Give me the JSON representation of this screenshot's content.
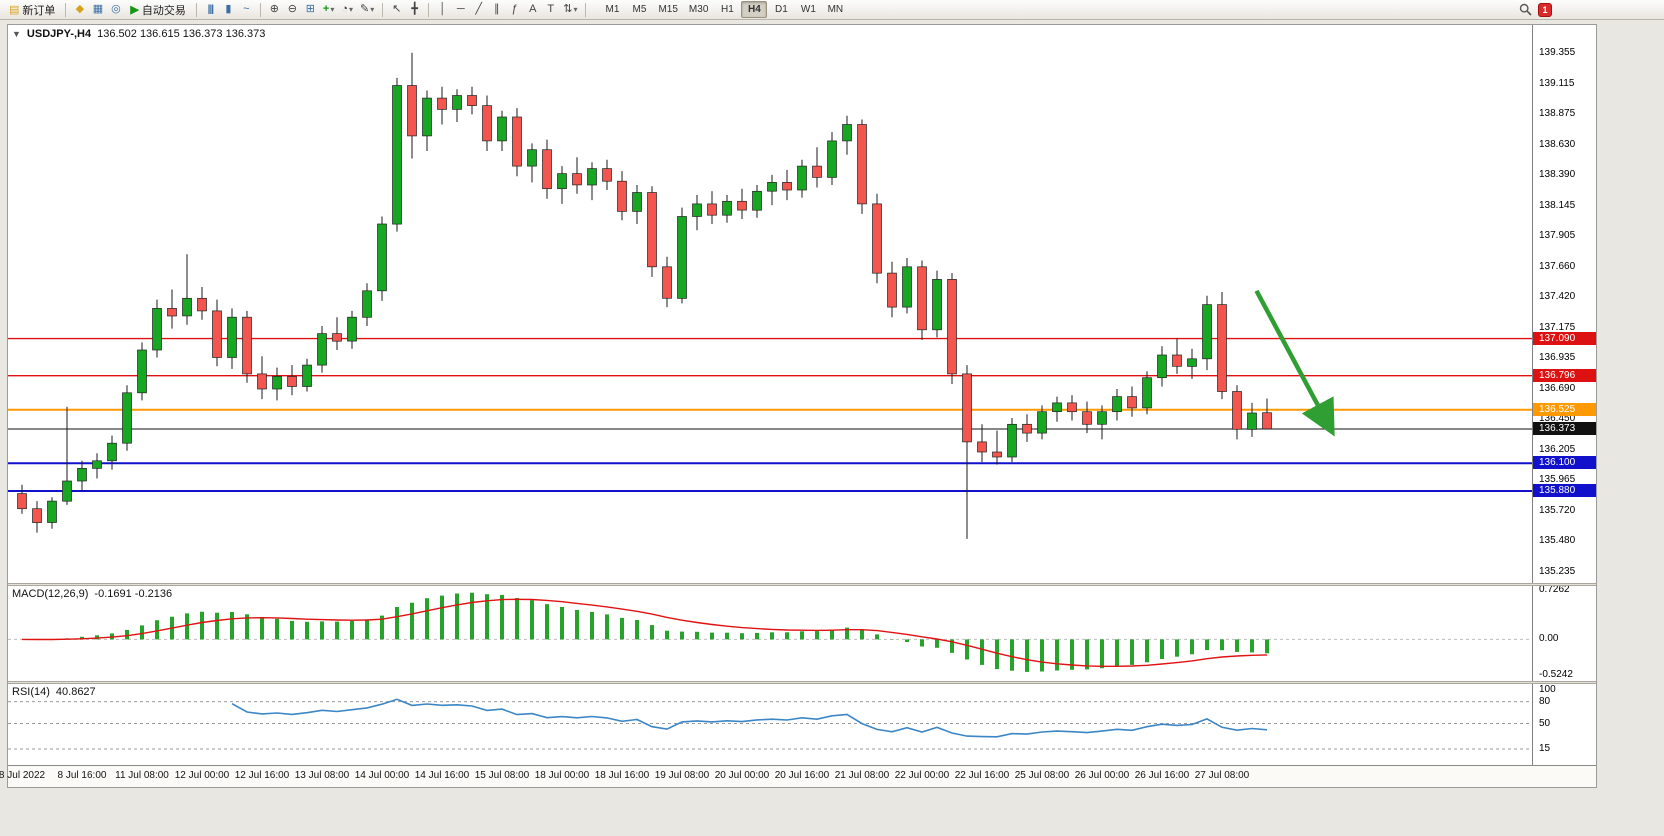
{
  "toolbar": {
    "new_order_label": "新订单",
    "auto_trading_label": "自动交易",
    "timeframes": [
      "M1",
      "M5",
      "M15",
      "M30",
      "H1",
      "H4",
      "D1",
      "W1",
      "MN"
    ],
    "active_timeframe": "H4",
    "notification_badge": "1",
    "glyphs": {
      "new_order": "▤",
      "megaphone": "◆",
      "chart_window": "▦",
      "profiles": "◎",
      "play": "▶",
      "bar_chart": "|||",
      "candlestick": "▮",
      "line_chart": "~",
      "zoom_in": "⊕",
      "zoom_out": "⊖",
      "tile_windows": "⊞",
      "indicators": "+",
      "periods": "◔",
      "templates": "✎",
      "cursor": "↖",
      "crosshair": "╋",
      "vertical_line": "│",
      "horizontal_line": "─",
      "trendline": "╱",
      "channel": "∥",
      "fibonacci": "ƒ",
      "text": "A",
      "label": "T",
      "arrows": "⇅",
      "dropdown": "▾",
      "one_click": "▼"
    }
  },
  "chart": {
    "symbol_period": "USDJPY-,H4",
    "ohlc_text": "136.502 136.615 136.373 136.373",
    "macd_header": "MACD(12,26,9)",
    "macd_values": "-0.1691 -0.2136",
    "rsi_header": "RSI(14)",
    "rsi_value": "40.8627"
  },
  "chart_data": {
    "type": "candlestick",
    "symbol": "USDJPY-",
    "timeframe": "H4",
    "ylim": [
      135.15,
      139.58
    ],
    "up_color": "#18a723",
    "down_color": "#f2564e",
    "wick_color": "#1b1b1b",
    "price_axis_ticks": [
      "139.355",
      "139.115",
      "138.875",
      "138.630",
      "138.390",
      "138.145",
      "137.905",
      "137.660",
      "137.420",
      "137.175",
      "136.935",
      "136.690",
      "136.450",
      "136.205",
      "135.965",
      "135.720",
      "135.480",
      "135.235"
    ],
    "time_labels": [
      "8 Jul 2022",
      "8 Jul 16:00",
      "11 Jul 08:00",
      "12 Jul 00:00",
      "12 Jul 16:00",
      "13 Jul 08:00",
      "14 Jul 00:00",
      "14 Jul 16:00",
      "15 Jul 08:00",
      "18 Jul 00:00",
      "18 Jul 16:00",
      "19 Jul 08:00",
      "20 Jul 00:00",
      "20 Jul 16:00",
      "21 Jul 08:00",
      "22 Jul 00:00",
      "22 Jul 16:00",
      "25 Jul 08:00",
      "26 Jul 00:00",
      "26 Jul 16:00",
      "27 Jul 08:00"
    ],
    "candles_per_label": 4,
    "candles_ohlc": [
      [
        135.86,
        135.93,
        135.7,
        135.74
      ],
      [
        135.74,
        135.8,
        135.55,
        135.63
      ],
      [
        135.63,
        135.83,
        135.58,
        135.8
      ],
      [
        135.8,
        136.55,
        135.77,
        135.96
      ],
      [
        135.96,
        136.12,
        135.88,
        136.06
      ],
      [
        136.06,
        136.18,
        135.98,
        136.12
      ],
      [
        136.12,
        136.32,
        136.05,
        136.26
      ],
      [
        136.26,
        136.72,
        136.2,
        136.66
      ],
      [
        136.66,
        137.06,
        136.6,
        137.0
      ],
      [
        137.0,
        137.4,
        136.94,
        137.33
      ],
      [
        137.33,
        137.48,
        137.17,
        137.27
      ],
      [
        137.27,
        137.76,
        137.2,
        137.41
      ],
      [
        137.41,
        137.5,
        137.24,
        137.31
      ],
      [
        137.31,
        137.4,
        136.87,
        136.94
      ],
      [
        136.94,
        137.33,
        136.85,
        137.26
      ],
      [
        137.26,
        137.31,
        136.74,
        136.81
      ],
      [
        136.81,
        136.95,
        136.61,
        136.69
      ],
      [
        136.69,
        136.86,
        136.6,
        136.79
      ],
      [
        136.79,
        136.88,
        136.64,
        136.71
      ],
      [
        136.71,
        136.93,
        136.67,
        136.88
      ],
      [
        136.88,
        137.19,
        136.82,
        137.13
      ],
      [
        137.13,
        137.26,
        137.0,
        137.07
      ],
      [
        137.07,
        137.31,
        137.01,
        137.26
      ],
      [
        137.26,
        137.53,
        137.19,
        137.47
      ],
      [
        137.47,
        138.06,
        137.39,
        138.0
      ],
      [
        138.0,
        139.16,
        137.94,
        139.1
      ],
      [
        139.1,
        139.36,
        138.52,
        138.7
      ],
      [
        138.7,
        139.06,
        138.58,
        139.0
      ],
      [
        139.0,
        139.09,
        138.79,
        138.91
      ],
      [
        138.91,
        139.07,
        138.81,
        139.02
      ],
      [
        139.02,
        139.09,
        138.87,
        138.94
      ],
      [
        138.94,
        139.02,
        138.58,
        138.66
      ],
      [
        138.66,
        138.9,
        138.58,
        138.85
      ],
      [
        138.85,
        138.92,
        138.38,
        138.46
      ],
      [
        138.46,
        138.64,
        138.33,
        138.59
      ],
      [
        138.59,
        138.67,
        138.2,
        138.28
      ],
      [
        138.28,
        138.46,
        138.16,
        138.4
      ],
      [
        138.4,
        138.53,
        138.24,
        138.31
      ],
      [
        138.31,
        138.49,
        138.19,
        138.44
      ],
      [
        138.44,
        138.51,
        138.27,
        138.34
      ],
      [
        138.34,
        138.42,
        138.03,
        138.1
      ],
      [
        138.1,
        138.31,
        138.0,
        138.25
      ],
      [
        138.25,
        138.3,
        137.58,
        137.66
      ],
      [
        137.66,
        137.74,
        137.34,
        137.41
      ],
      [
        137.41,
        138.13,
        137.37,
        138.06
      ],
      [
        138.06,
        138.23,
        137.95,
        138.16
      ],
      [
        138.16,
        138.26,
        138.0,
        138.07
      ],
      [
        138.07,
        138.23,
        138.01,
        138.18
      ],
      [
        138.18,
        138.28,
        138.04,
        138.11
      ],
      [
        138.11,
        138.31,
        138.05,
        138.26
      ],
      [
        138.26,
        138.39,
        138.15,
        138.33
      ],
      [
        138.33,
        138.43,
        138.19,
        138.27
      ],
      [
        138.27,
        138.51,
        138.21,
        138.46
      ],
      [
        138.46,
        138.61,
        138.29,
        138.37
      ],
      [
        138.37,
        138.73,
        138.31,
        138.66
      ],
      [
        138.66,
        138.86,
        138.55,
        138.79
      ],
      [
        138.79,
        138.83,
        138.08,
        138.16
      ],
      [
        138.16,
        138.24,
        137.53,
        137.61
      ],
      [
        137.61,
        137.7,
        137.26,
        137.34
      ],
      [
        137.34,
        137.73,
        137.29,
        137.66
      ],
      [
        137.66,
        137.71,
        137.08,
        137.16
      ],
      [
        137.16,
        137.63,
        137.1,
        137.56
      ],
      [
        137.56,
        137.61,
        136.73,
        136.81
      ],
      [
        136.81,
        136.88,
        135.5,
        136.27
      ],
      [
        136.27,
        136.41,
        136.11,
        136.19
      ],
      [
        136.19,
        136.36,
        136.09,
        136.15
      ],
      [
        136.15,
        136.46,
        136.11,
        136.41
      ],
      [
        136.41,
        136.49,
        136.27,
        136.34
      ],
      [
        136.34,
        136.56,
        136.29,
        136.51
      ],
      [
        136.51,
        136.63,
        136.43,
        136.58
      ],
      [
        136.58,
        136.64,
        136.44,
        136.51
      ],
      [
        136.51,
        136.59,
        136.34,
        136.41
      ],
      [
        136.41,
        136.56,
        136.29,
        136.51
      ],
      [
        136.51,
        136.69,
        136.44,
        136.63
      ],
      [
        136.63,
        136.71,
        136.47,
        136.54
      ],
      [
        136.54,
        136.83,
        136.49,
        136.78
      ],
      [
        136.78,
        137.03,
        136.71,
        136.96
      ],
      [
        136.96,
        137.09,
        136.81,
        136.87
      ],
      [
        136.87,
        137.01,
        136.77,
        136.93
      ],
      [
        136.93,
        137.43,
        136.84,
        137.36
      ],
      [
        137.36,
        137.46,
        136.61,
        136.67
      ],
      [
        136.67,
        136.72,
        136.29,
        136.37
      ],
      [
        136.37,
        136.58,
        136.31,
        136.5
      ],
      [
        136.502,
        136.615,
        136.373,
        136.373
      ]
    ],
    "levels": [
      {
        "price": 137.09,
        "label": "137.090",
        "color": "#dd1111",
        "width": 1.4
      },
      {
        "price": 136.796,
        "label": "136.796",
        "color": "#dd1111",
        "width": 1.4
      },
      {
        "price": 136.525,
        "label": "136.525",
        "color": "#ff9900",
        "width": 2
      },
      {
        "price": 136.373,
        "label": "136.373",
        "color": "#111111",
        "width": 1,
        "current_price": true
      },
      {
        "price": 136.1,
        "label": "136.100",
        "color": "#1111cc",
        "width": 2
      },
      {
        "price": 135.88,
        "label": "135.880",
        "color": "#1111cc",
        "width": 2
      }
    ],
    "annotation_arrow": {
      "color": "#2f9e33",
      "from_candle": 82.3,
      "from_price": 137.47,
      "to_candle": 87.3,
      "to_price": 136.36
    },
    "macd": {
      "params": [
        12,
        26,
        9
      ],
      "macd_value": -0.1691,
      "signal_value": -0.2136,
      "ylim": [
        -0.5242,
        0.7262
      ],
      "scale_labels": [
        "0.7262",
        "0.00",
        "-0.5242"
      ],
      "hist_color": "#27a32c",
      "signal_color": "#e01212"
    },
    "rsi": {
      "period": 14,
      "value": 40.8627,
      "ylim": [
        0,
        100
      ],
      "levels": [
        80,
        50,
        15
      ],
      "scale_labels": [
        "100",
        "80",
        "50",
        "15"
      ],
      "line_color": "#3c86c6"
    }
  }
}
